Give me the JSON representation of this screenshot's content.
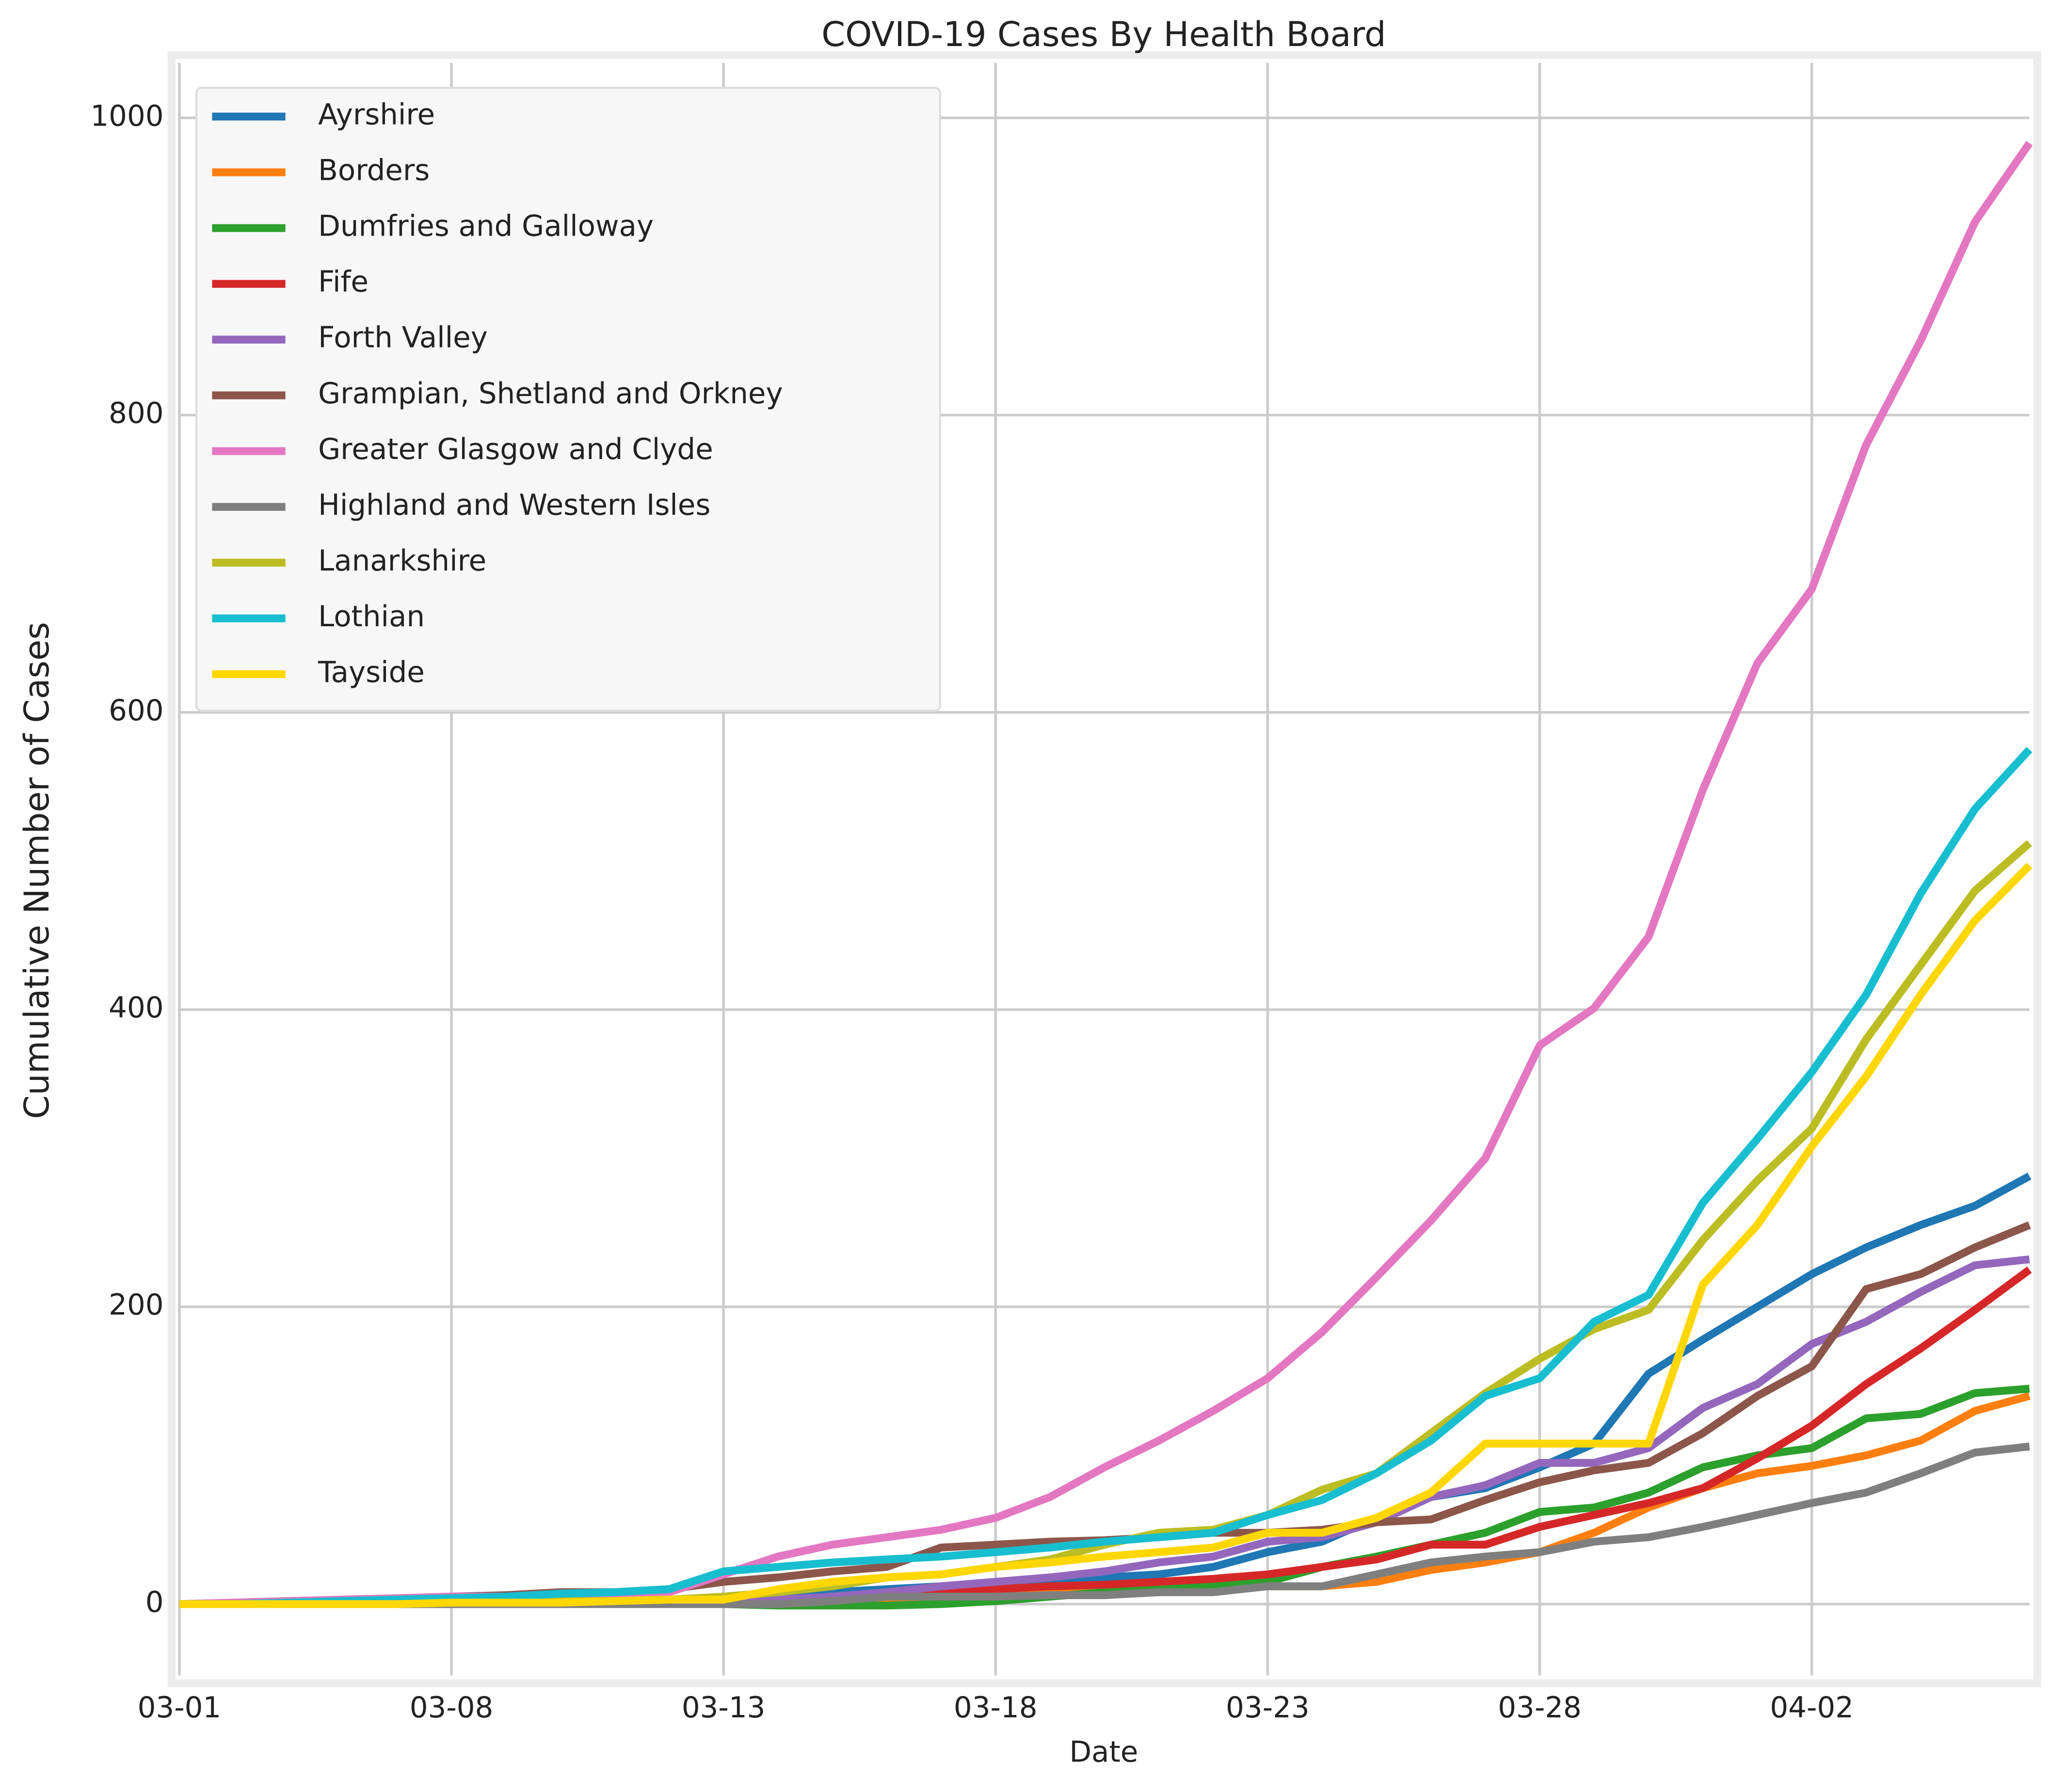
{
  "chart_data": {
    "type": "line",
    "title": "COVID-19 Cases By Health Board",
    "xlabel": "Date",
    "ylabel": "Cumulative Number of Cases",
    "categories": [
      "03-01",
      null,
      null,
      null,
      null,
      "03-08",
      null,
      null,
      null,
      null,
      "03-13",
      null,
      null,
      null,
      null,
      "03-18",
      null,
      null,
      null,
      null,
      "03-23",
      null,
      null,
      null,
      null,
      "03-28",
      null,
      null,
      null,
      null,
      "04-02",
      null,
      null,
      null,
      null
    ],
    "ylim": [
      -48,
      1037
    ],
    "yticks": [
      0,
      200,
      400,
      600,
      800,
      1000
    ],
    "grid": true,
    "legend": "upper left",
    "series": [
      {
        "name": "Ayrshire",
        "color": "#1f77b4",
        "values": [
          0,
          0,
          0,
          0,
          0,
          0,
          0,
          0,
          0,
          2,
          3,
          5,
          8,
          10,
          12,
          15,
          15,
          18,
          20,
          25,
          35,
          42,
          58,
          72,
          78,
          92,
          108,
          155,
          178,
          200,
          222,
          240,
          255,
          268,
          288
        ]
      },
      {
        "name": "Borders",
        "color": "#ff7f0e",
        "values": [
          0,
          0,
          0,
          0,
          0,
          0,
          0,
          0,
          0,
          0,
          0,
          0,
          0,
          2,
          5,
          8,
          10,
          10,
          10,
          10,
          12,
          12,
          15,
          23,
          28,
          35,
          48,
          65,
          78,
          88,
          93,
          100,
          110,
          130,
          140
        ]
      },
      {
        "name": "Dumfries and Galloway",
        "color": "#2ca02c",
        "values": [
          0,
          0,
          0,
          0,
          0,
          0,
          0,
          0,
          0,
          0,
          0,
          -1,
          -1,
          -1,
          0,
          2,
          5,
          8,
          10,
          12,
          15,
          25,
          32,
          40,
          48,
          62,
          65,
          75,
          92,
          100,
          105,
          125,
          128,
          142,
          145
        ]
      },
      {
        "name": "Fife",
        "color": "#d62728",
        "values": [
          0,
          0,
          0,
          0,
          0,
          0,
          0,
          0,
          0,
          0,
          0,
          2,
          3,
          5,
          8,
          10,
          12,
          13,
          15,
          17,
          20,
          25,
          30,
          40,
          40,
          52,
          60,
          68,
          78,
          98,
          120,
          148,
          172,
          198,
          225
        ]
      },
      {
        "name": "Forth Valley",
        "color": "#9467bd",
        "values": [
          0,
          0,
          0,
          0,
          0,
          0,
          0,
          0,
          0,
          0,
          2,
          3,
          5,
          8,
          12,
          15,
          18,
          22,
          28,
          32,
          42,
          45,
          55,
          72,
          80,
          95,
          95,
          105,
          132,
          148,
          175,
          190,
          210,
          228,
          232
        ]
      },
      {
        "name": "Grampian, Shetland and Orkney",
        "color": "#8c564b",
        "values": [
          0,
          1,
          2,
          3,
          4,
          5,
          6,
          8,
          8,
          10,
          15,
          18,
          22,
          25,
          38,
          40,
          42,
          43,
          45,
          48,
          48,
          50,
          55,
          57,
          70,
          82,
          90,
          95,
          115,
          140,
          160,
          212,
          222,
          240,
          255
        ]
      },
      {
        "name": "Greater Glasgow and Clyde",
        "color": "#e377c2",
        "values": [
          0,
          1,
          2,
          3,
          4,
          5,
          5,
          5,
          6,
          8,
          20,
          32,
          40,
          45,
          50,
          58,
          72,
          92,
          110,
          130,
          152,
          183,
          220,
          258,
          300,
          376,
          401,
          449,
          548,
          633,
          683,
          780,
          850,
          930,
          983
        ]
      },
      {
        "name": "Highland and Western Isles",
        "color": "#7f7f7f",
        "values": [
          0,
          0,
          0,
          0,
          0,
          0,
          0,
          0,
          0,
          0,
          0,
          0,
          2,
          5,
          5,
          5,
          6,
          6,
          8,
          8,
          12,
          12,
          20,
          28,
          32,
          35,
          42,
          45,
          52,
          60,
          68,
          75,
          88,
          102,
          106
        ]
      },
      {
        "name": "Lanarkshire",
        "color": "#bcbd22",
        "values": [
          0,
          0,
          0,
          1,
          2,
          2,
          2,
          2,
          2,
          3,
          5,
          8,
          12,
          18,
          20,
          25,
          30,
          40,
          48,
          50,
          60,
          77,
          88,
          115,
          142,
          165,
          185,
          198,
          245,
          285,
          320,
          380,
          430,
          480,
          512
        ]
      },
      {
        "name": "Lothian",
        "color": "#17becf",
        "values": [
          0,
          0,
          1,
          2,
          3,
          4,
          5,
          7,
          8,
          10,
          22,
          25,
          28,
          30,
          32,
          35,
          38,
          42,
          45,
          48,
          60,
          70,
          88,
          110,
          140,
          152,
          190,
          208,
          270,
          313,
          358,
          410,
          478,
          535,
          575
        ]
      },
      {
        "name": "Tayside",
        "color": "#ffd700",
        "values": [
          0,
          0,
          0,
          0,
          0,
          1,
          1,
          1,
          2,
          3,
          3,
          10,
          15,
          18,
          20,
          25,
          28,
          32,
          35,
          38,
          48,
          48,
          58,
          75,
          108,
          108,
          108,
          108,
          215,
          255,
          308,
          355,
          410,
          460,
          497
        ]
      }
    ]
  }
}
